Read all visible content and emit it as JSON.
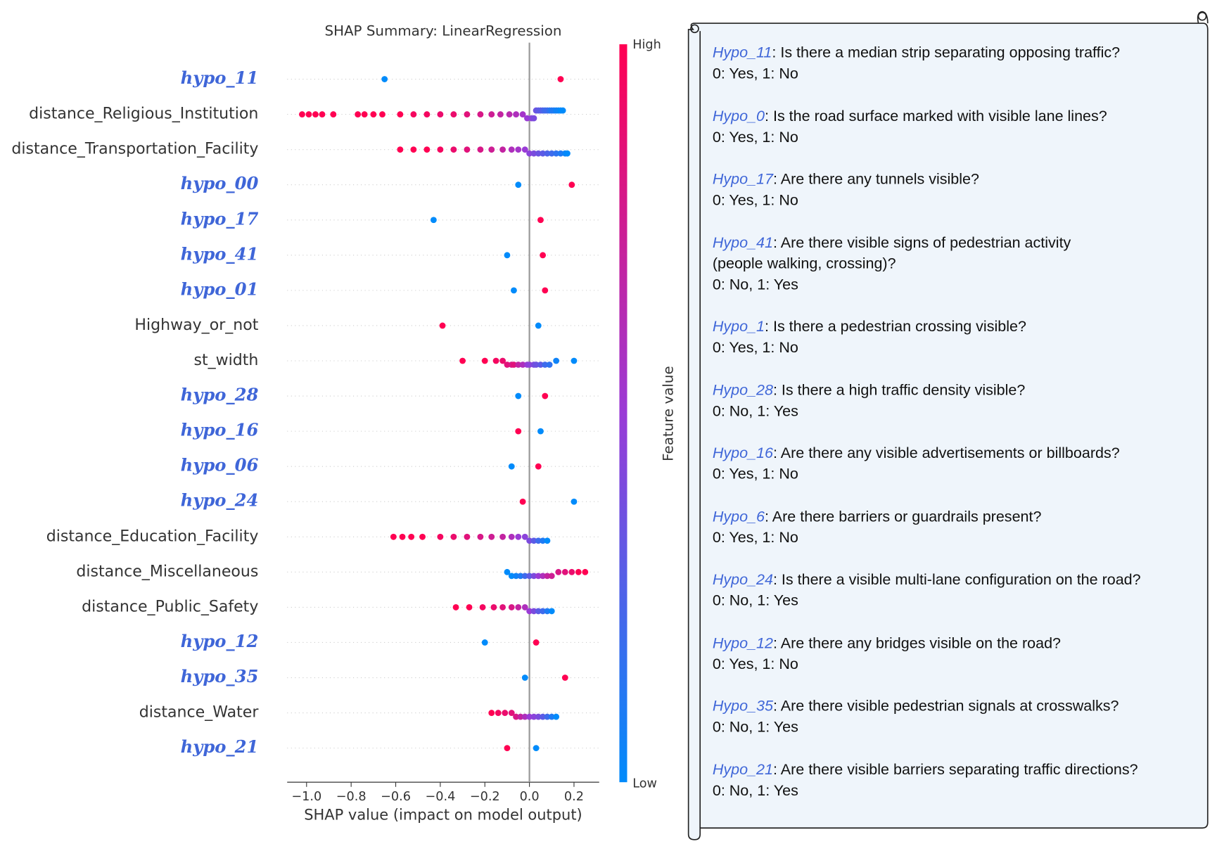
{
  "chart_data": {
    "type": "beeswarm",
    "title": "SHAP Summary: LinearRegression",
    "xlabel": "SHAP value (impact on model output)",
    "xlim": [
      -1.087,
      0.313
    ],
    "xticks": [
      {
        "value": -1,
        "label": "−1.0"
      },
      {
        "value": -0.8,
        "label": "−0.8"
      },
      {
        "value": -0.6,
        "label": "−0.6"
      },
      {
        "value": -0.4,
        "label": "−0.4"
      },
      {
        "value": -0.2,
        "label": "−0.2"
      },
      {
        "value": 0,
        "label": "0.0"
      },
      {
        "value": 0.2,
        "label": "0.2"
      }
    ],
    "colormap": [
      "#008bfb",
      "#9a3bd6",
      "#ff0052"
    ],
    "colorbar": {
      "label": "Feature value",
      "high": "High",
      "low": "Low"
    },
    "features": [
      {
        "name": "hypo_11",
        "emphasis": true,
        "shap": [
          -0.65,
          0.14
        ],
        "feature_value": [
          0,
          1
        ]
      },
      {
        "name": "distance_Religious_Institution",
        "emphasis": false,
        "shap": [
          -1.02,
          -0.99,
          -0.96,
          -0.93,
          -0.88,
          -0.77,
          -0.74,
          -0.7,
          -0.66,
          -0.58,
          -0.52,
          -0.46,
          -0.4,
          -0.34,
          -0.28,
          -0.22,
          -0.17,
          -0.13,
          -0.09,
          -0.06,
          -0.03,
          -0.01,
          0.01,
          0.02,
          0.03,
          0.04,
          0.05,
          0.06,
          0.07,
          0.08,
          0.09,
          0.1,
          0.11,
          0.12,
          0.13,
          0.14,
          0.15
        ],
        "feature_value": [
          1,
          1,
          1,
          1,
          1,
          1,
          1,
          1,
          1,
          1,
          0.95,
          0.95,
          0.9,
          0.9,
          0.85,
          0.8,
          0.75,
          0.7,
          0.65,
          0.6,
          0.55,
          0.5,
          0.45,
          0.4,
          0.35,
          0.3,
          0.3,
          0.25,
          0.2,
          0.2,
          0.15,
          0.1,
          0.1,
          0.05,
          0.05,
          0,
          0
        ]
      },
      {
        "name": "distance_Transportation_Facility",
        "emphasis": false,
        "shap": [
          -0.58,
          -0.52,
          -0.46,
          -0.4,
          -0.34,
          -0.28,
          -0.22,
          -0.17,
          -0.12,
          -0.08,
          -0.05,
          -0.02,
          0,
          0.02,
          0.04,
          0.06,
          0.08,
          0.1,
          0.12,
          0.14,
          0.16,
          0.17
        ],
        "feature_value": [
          1,
          1,
          1,
          0.95,
          0.9,
          0.85,
          0.8,
          0.75,
          0.7,
          0.6,
          0.55,
          0.5,
          0.45,
          0.4,
          0.35,
          0.3,
          0.25,
          0.2,
          0.15,
          0.1,
          0.05,
          0
        ]
      },
      {
        "name": "hypo_00",
        "emphasis": true,
        "shap": [
          -0.05,
          0.19
        ],
        "feature_value": [
          0,
          1
        ]
      },
      {
        "name": "hypo_17",
        "emphasis": true,
        "shap": [
          -0.43,
          0.05
        ],
        "feature_value": [
          0,
          1
        ]
      },
      {
        "name": "hypo_41",
        "emphasis": true,
        "shap": [
          -0.1,
          0.06
        ],
        "feature_value": [
          0,
          1
        ]
      },
      {
        "name": "hypo_01",
        "emphasis": true,
        "shap": [
          -0.07,
          0.07
        ],
        "feature_value": [
          0,
          1
        ]
      },
      {
        "name": "Highway_or_not",
        "emphasis": false,
        "shap": [
          -0.39,
          0.04
        ],
        "feature_value": [
          1,
          0
        ]
      },
      {
        "name": "st_width",
        "emphasis": false,
        "shap": [
          -0.3,
          -0.2,
          -0.15,
          -0.12,
          -0.1,
          -0.08,
          -0.07,
          -0.05,
          -0.03,
          -0.01,
          0,
          0.02,
          0.03,
          0.05,
          0.07,
          0.09,
          0.12,
          0.2
        ],
        "feature_value": [
          1,
          1,
          0.95,
          0.9,
          0.85,
          0.8,
          0.85,
          0.7,
          0.6,
          0.5,
          0.45,
          0.4,
          0.35,
          0.3,
          0.2,
          0.15,
          0.05,
          0
        ]
      },
      {
        "name": "hypo_28",
        "emphasis": true,
        "shap": [
          -0.05,
          0.07
        ],
        "feature_value": [
          0,
          1
        ]
      },
      {
        "name": "hypo_16",
        "emphasis": true,
        "shap": [
          -0.05,
          0.05
        ],
        "feature_value": [
          1,
          0
        ]
      },
      {
        "name": "hypo_06",
        "emphasis": true,
        "shap": [
          -0.08,
          0.04
        ],
        "feature_value": [
          0,
          1
        ]
      },
      {
        "name": "hypo_24",
        "emphasis": true,
        "shap": [
          -0.03,
          0.2
        ],
        "feature_value": [
          1,
          0
        ]
      },
      {
        "name": "distance_Education_Facility",
        "emphasis": false,
        "shap": [
          -0.61,
          -0.57,
          -0.53,
          -0.48,
          -0.4,
          -0.34,
          -0.28,
          -0.22,
          -0.17,
          -0.12,
          -0.08,
          -0.05,
          -0.02,
          0,
          0.02,
          0.04,
          0.06,
          0.08
        ],
        "feature_value": [
          1,
          1,
          1,
          1,
          0.95,
          0.9,
          0.85,
          0.8,
          0.75,
          0.7,
          0.6,
          0.5,
          0.45,
          0.4,
          0.3,
          0.2,
          0.1,
          0
        ]
      },
      {
        "name": "distance_Miscellaneous",
        "emphasis": false,
        "shap": [
          -0.1,
          -0.08,
          -0.06,
          -0.04,
          -0.02,
          0,
          0.02,
          0.04,
          0.06,
          0.08,
          0.1,
          0.13,
          0.16,
          0.19,
          0.22,
          0.25
        ],
        "feature_value": [
          0,
          0,
          0.05,
          0.1,
          0.2,
          0.3,
          0.4,
          0.5,
          0.6,
          0.7,
          0.75,
          0.8,
          0.85,
          0.9,
          1,
          1
        ]
      },
      {
        "name": "distance_Public_Safety",
        "emphasis": false,
        "shap": [
          -0.33,
          -0.27,
          -0.21,
          -0.16,
          -0.12,
          -0.08,
          -0.05,
          -0.02,
          0,
          0.02,
          0.04,
          0.06,
          0.08,
          0.1
        ],
        "feature_value": [
          1,
          1,
          0.95,
          0.9,
          0.85,
          0.8,
          0.7,
          0.6,
          0.5,
          0.4,
          0.3,
          0.2,
          0.1,
          0
        ]
      },
      {
        "name": "hypo_12",
        "emphasis": true,
        "shap": [
          -0.2,
          0.03
        ],
        "feature_value": [
          0,
          1
        ]
      },
      {
        "name": "hypo_35",
        "emphasis": true,
        "shap": [
          -0.02,
          0.16
        ],
        "feature_value": [
          0,
          1
        ]
      },
      {
        "name": "distance_Water",
        "emphasis": false,
        "shap": [
          -0.17,
          -0.14,
          -0.11,
          -0.08,
          -0.06,
          -0.04,
          -0.02,
          0,
          0.02,
          0.04,
          0.06,
          0.08,
          0.1,
          0.12
        ],
        "feature_value": [
          1,
          0.95,
          0.9,
          0.85,
          0.8,
          0.7,
          0.6,
          0.5,
          0.45,
          0.4,
          0.3,
          0.2,
          0.1,
          0
        ]
      },
      {
        "name": "hypo_21",
        "emphasis": true,
        "shap": [
          -0.1,
          0.03
        ],
        "feature_value": [
          1,
          0
        ]
      }
    ]
  },
  "notes": [
    {
      "name": "Hypo_11",
      "lines": [
        ": Is there a median strip separating opposing traffic?",
        "0: Yes, 1: No"
      ]
    },
    {
      "name": "Hypo_0",
      "lines": [
        ": Is the road surface marked with visible lane lines?",
        "0: Yes, 1: No"
      ]
    },
    {
      "name": "Hypo_17",
      "lines": [
        ": Are there any tunnels visible?",
        "0: Yes, 1: No"
      ]
    },
    {
      "name": "Hypo_41",
      "lines": [
        ": Are there visible signs of pedestrian activity",
        "(people walking, crossing)?",
        "0: No, 1: Yes"
      ]
    },
    {
      "name": "Hypo_1",
      "lines": [
        ": Is there a pedestrian crossing visible?",
        "0: Yes, 1: No"
      ]
    },
    {
      "name": "Hypo_28",
      "lines": [
        ": Is there a high traffic density visible?",
        "0: No, 1: Yes"
      ]
    },
    {
      "name": "Hypo_16",
      "lines": [
        ": Are there any visible advertisements or billboards?",
        "0: Yes, 1: No"
      ]
    },
    {
      "name": "Hypo_6",
      "lines": [
        ": Are there barriers or guardrails present?",
        "0: Yes, 1: No"
      ]
    },
    {
      "name": "Hypo_24",
      "lines": [
        ": Is there a visible multi-lane configuration on the road?",
        "0: No, 1: Yes"
      ]
    },
    {
      "name": "Hypo_12",
      "lines": [
        ": Are there any bridges visible on the road?",
        "0: Yes, 1: No"
      ]
    },
    {
      "name": "Hypo_35",
      "lines": [
        ": Are there visible pedestrian signals at crosswalks?",
        "0: No, 1: Yes"
      ]
    },
    {
      "name": "Hypo_21",
      "lines": [
        ": Are there visible barriers separating traffic directions?",
        "0: No, 1: Yes"
      ]
    }
  ]
}
